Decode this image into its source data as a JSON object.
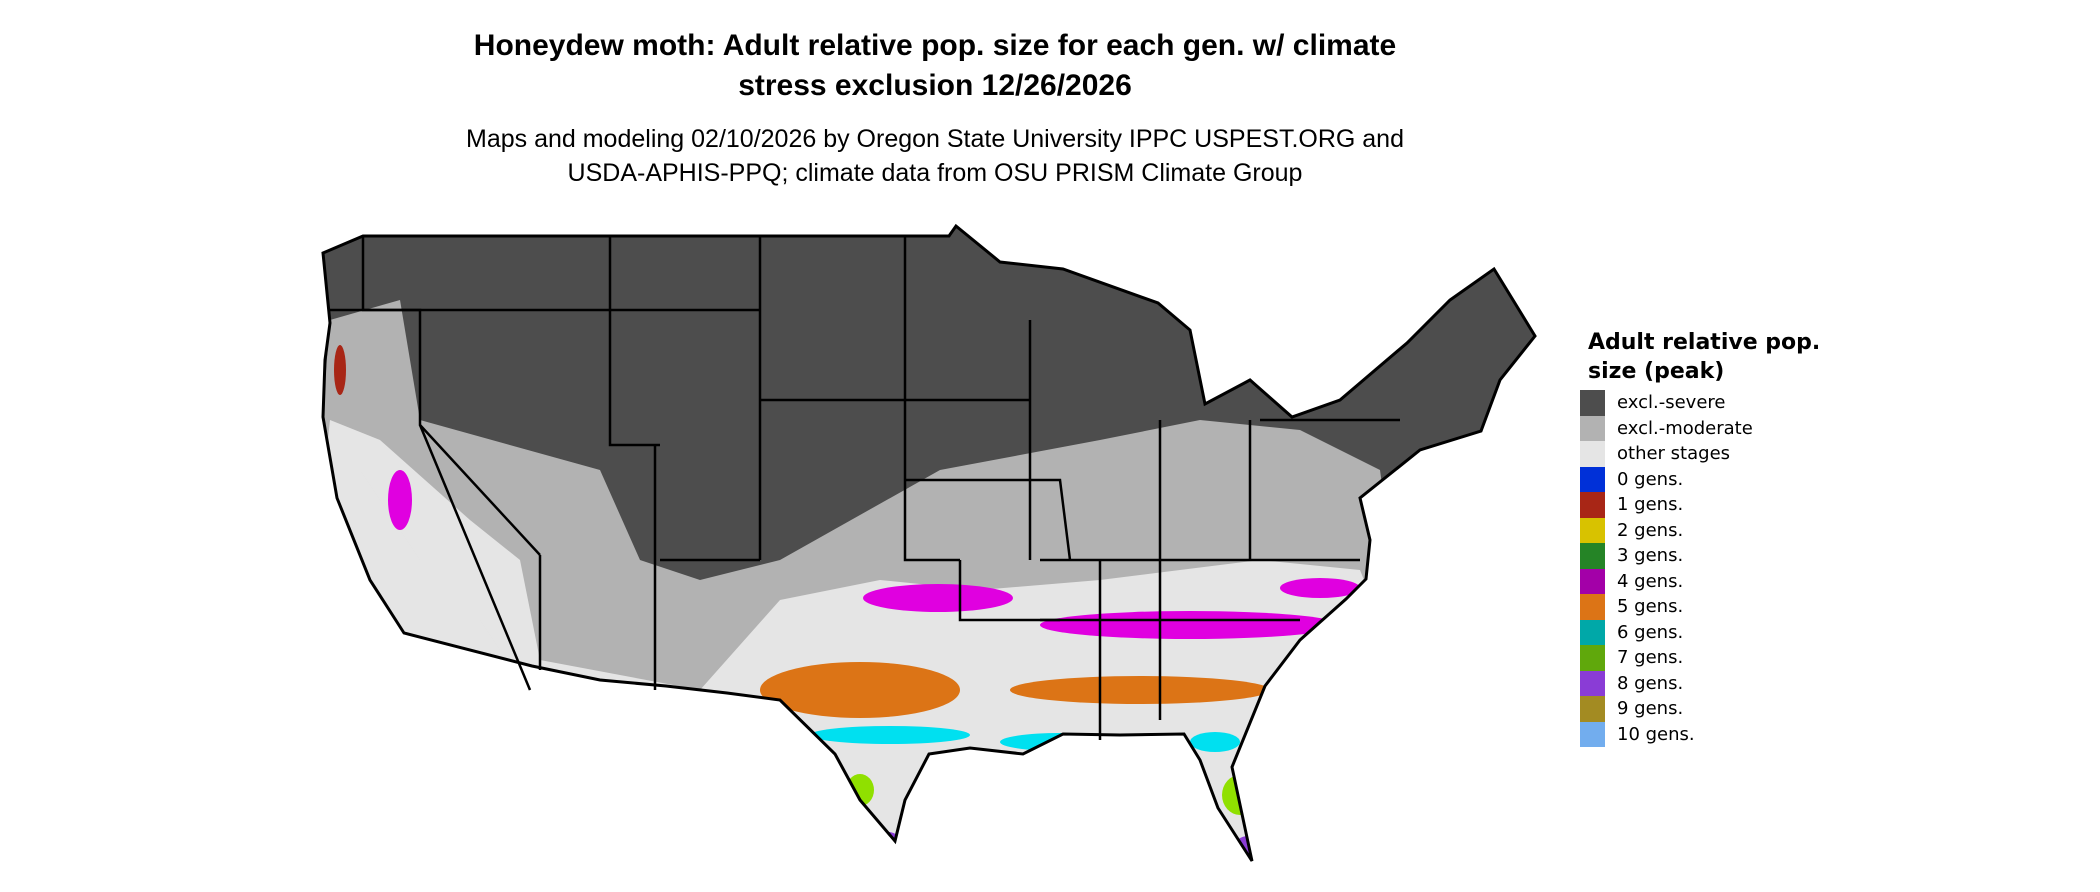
{
  "title": {
    "line1": "Honeydew moth: Adult relative pop. size for each gen. w/ climate",
    "line2": "stress exclusion 12/26/2026"
  },
  "subtitle": {
    "line1": "Maps and modeling 02/10/2026 by Oregon State University IPPC USPEST.ORG and",
    "line2": "USDA-APHIS-PPQ; climate data from OSU PRISM Climate Group"
  },
  "legend": {
    "title": "Adult relative pop. size (peak)",
    "items": [
      {
        "label": "excl.-severe",
        "color": "#4d4d4d"
      },
      {
        "label": "excl.-moderate",
        "color": "#b2b2b2"
      },
      {
        "label": "other stages",
        "color": "#e5e5e5"
      },
      {
        "label": "0 gens.",
        "color": "#0030d8"
      },
      {
        "label": "1 gens.",
        "color": "#a82616"
      },
      {
        "label": "2 gens.",
        "color": "#d8c200"
      },
      {
        "label": "3 gens.",
        "color": "#258426"
      },
      {
        "label": "4 gens.",
        "color": "#a300a8"
      },
      {
        "label": "5 gens.",
        "color": "#dc7416"
      },
      {
        "label": "6 gens.",
        "color": "#00a8a8"
      },
      {
        "label": "7 gens.",
        "color": "#60a80c"
      },
      {
        "label": "8 gens.",
        "color": "#8a3cd6"
      },
      {
        "label": "9 gens.",
        "color": "#a38b22"
      },
      {
        "label": "10 gens.",
        "color": "#72adee"
      }
    ]
  },
  "map_colors": {
    "border": "#000000",
    "magenta_patches": "#e000e0",
    "cyan_patches": "#00e0f0",
    "lime_patches": "#90e000"
  }
}
